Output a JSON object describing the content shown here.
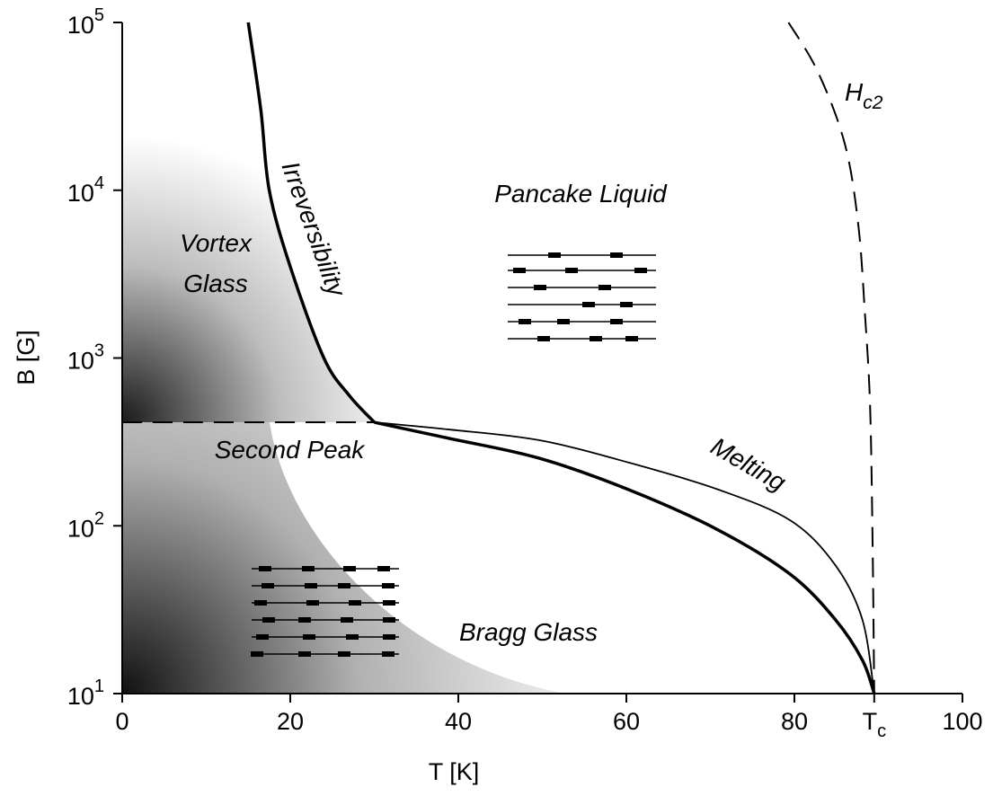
{
  "chart_data": {
    "type": "line",
    "xlabel": "T [K]",
    "ylabel": "B [G]",
    "xlim": [
      0,
      100
    ],
    "ylim": [
      10,
      100000
    ],
    "yscale": "log",
    "grid": false,
    "xticks": [
      0,
      20,
      40,
      60,
      80,
      {
        "value": 89.5,
        "label": "T",
        "subscript": "c"
      },
      100
    ],
    "yticks": [
      {
        "value": 10,
        "label": "10",
        "exponent": "1"
      },
      {
        "value": 100,
        "label": "10",
        "exponent": "2"
      },
      {
        "value": 1000,
        "label": "10",
        "exponent": "3"
      },
      {
        "value": 10000,
        "label": "10",
        "exponent": "4"
      },
      {
        "value": 100000,
        "label": "10",
        "exponent": "5"
      }
    ],
    "series": [
      {
        "color": "#000000",
        "width": 3.5,
        "dash": false,
        "x": [
          15,
          16.5,
          17.5,
          20,
          24,
          27,
          30
        ],
        "values": [
          100000,
          30000,
          10000,
          3500,
          1000,
          600,
          414
        ]
      },
      {
        "color": "#000000",
        "width": 2,
        "dash": true,
        "x": [
          0,
          30
        ],
        "values": [
          414,
          414
        ]
      },
      {
        "color": "#000000",
        "width": 3.5,
        "dash": false,
        "x": [
          30,
          38.9,
          49.6,
          60.3,
          71.0,
          79.6,
          84.9,
          88.1,
          89.5
        ],
        "values": [
          414,
          332,
          253,
          164,
          94,
          51,
          27.5,
          15.8,
          10
        ]
      },
      {
        "color": "#000000",
        "width": 1.8,
        "dash": false,
        "x": [
          30,
          38.9,
          49.6,
          60.3,
          71.0,
          79.6,
          84.9,
          88.1,
          89.5
        ],
        "values": [
          414,
          375,
          324,
          238,
          164,
          107,
          58,
          27.5,
          10
        ]
      },
      {
        "color": "#000000",
        "width": 2,
        "dash": true,
        "x": [
          79.3,
          82.8,
          86.0,
          87.6,
          88.4,
          89.0,
          89.3,
          89.5
        ],
        "values": [
          100000,
          50700,
          18900,
          6240,
          1820,
          530,
          83,
          10
        ]
      }
    ],
    "annotations": [
      {
        "text": "Vortex"
      },
      {
        "text": "Glass"
      },
      {
        "text": "Irreversibility"
      },
      {
        "text": "Pancake Liquid"
      },
      {
        "text": "Second Peak"
      },
      {
        "text": "Melting"
      },
      {
        "text": "Bragg Glass"
      },
      {
        "text": "H",
        "subscript": "c2"
      }
    ]
  }
}
